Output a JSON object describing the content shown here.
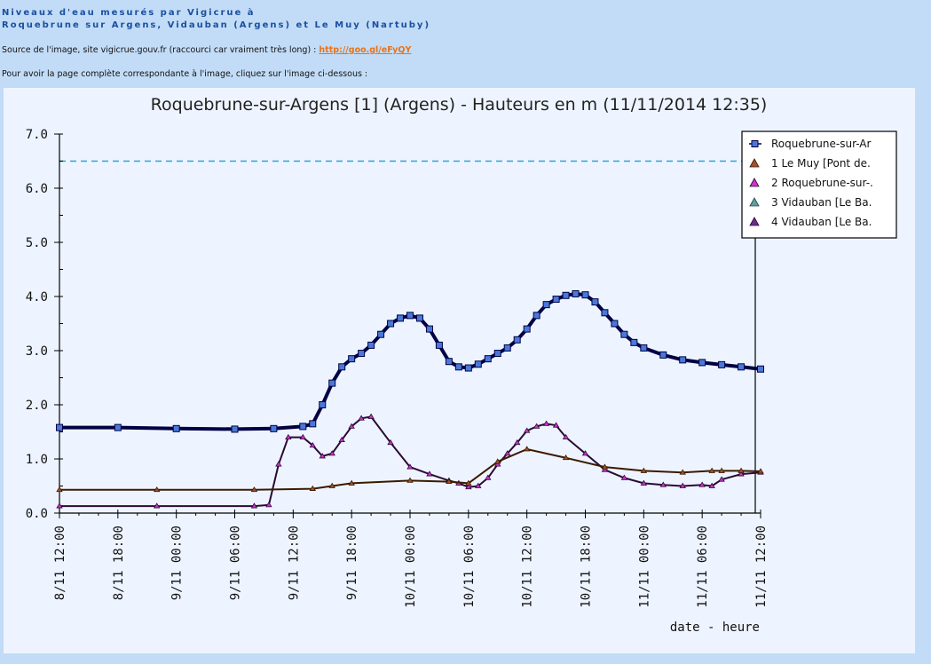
{
  "header": {
    "title_line1": "Niveaux d'eau mesurés par Vigicrue à",
    "title_line2": "Roquebrune sur Argens, Vidauban (Argens) et Le Muy (Nartuby)"
  },
  "source": {
    "prefix": "Source de l'image, site vigicrue.gouv.fr (raccourci car vraiment très long) : ",
    "link_text": "http://goo.gl/eFyQY"
  },
  "click_note": "Pour avoir la page complète correspondante à l'image, cliquez sur l'image ci-dessous :",
  "chart_data": {
    "type": "line",
    "title": "Roquebrune-sur-Argens [1] (Argens) - Hauteurs en m (11/11/2014 12:35)",
    "xlabel": "date - heure",
    "ylabel": "",
    "ylim": [
      0,
      7
    ],
    "y_ticks": [
      "0.0",
      "1.0",
      "2.0",
      "3.0",
      "4.0",
      "5.0",
      "6.0",
      "7.0"
    ],
    "x_range_hours": [
      0,
      72
    ],
    "x_tick_hours": [
      0,
      6,
      12,
      18,
      24,
      30,
      36,
      42,
      48,
      54,
      60,
      66,
      72
    ],
    "x_tick_labels": [
      "8/11 12:00",
      "8/11 18:00",
      "9/11 00:00",
      "9/11 06:00",
      "9/11 12:00",
      "9/11 18:00",
      "10/11 00:00",
      "10/11 06:00",
      "10/11 12:00",
      "10/11 18:00",
      "11/11 00:00",
      "11/11 06:00",
      "11/11 12:00"
    ],
    "threshold": {
      "value": 6.5,
      "color": "#2aa3d8"
    },
    "grid": false,
    "legend_position": "top-right",
    "series": [
      {
        "name": "Roquebrune-sur-Ar",
        "color": "#000044",
        "marker": "square",
        "marker_color": "#4a78d8",
        "x": [
          0,
          6,
          12,
          18,
          22,
          25,
          26,
          27,
          28,
          29,
          30,
          31,
          32,
          33,
          34,
          35,
          36,
          37,
          38,
          39,
          40,
          41,
          42,
          43,
          44,
          45,
          46,
          47,
          48,
          49,
          50,
          51,
          52,
          53,
          54,
          55,
          56,
          57,
          58,
          59,
          60,
          62,
          64,
          66,
          68,
          70,
          72
        ],
        "y": [
          1.58,
          1.58,
          1.56,
          1.55,
          1.56,
          1.6,
          1.65,
          2.0,
          2.4,
          2.7,
          2.85,
          2.95,
          3.1,
          3.3,
          3.5,
          3.6,
          3.65,
          3.6,
          3.4,
          3.1,
          2.8,
          2.7,
          2.68,
          2.75,
          2.85,
          2.95,
          3.05,
          3.2,
          3.4,
          3.65,
          3.85,
          3.95,
          4.02,
          4.05,
          4.03,
          3.9,
          3.7,
          3.5,
          3.3,
          3.15,
          3.05,
          2.92,
          2.83,
          2.78,
          2.74,
          2.7,
          2.66
        ]
      },
      {
        "name": "1 Le Muy [Pont de.",
        "color": "#3a1a00",
        "marker": "triangle",
        "marker_color": "#a0522d",
        "x": [
          0,
          10,
          20,
          26,
          28,
          30,
          36,
          40,
          42,
          45,
          48,
          52,
          56,
          60,
          64,
          67,
          68,
          70,
          72
        ],
        "y": [
          0.43,
          0.43,
          0.43,
          0.45,
          0.5,
          0.55,
          0.6,
          0.58,
          0.55,
          0.95,
          1.18,
          1.02,
          0.85,
          0.78,
          0.75,
          0.78,
          0.78,
          0.78,
          0.77
        ]
      },
      {
        "name": "2 Roquebrune-sur-.",
        "color": "#2a0a33",
        "marker": "triangle",
        "marker_color": "#cc33cc",
        "x": [
          0,
          10,
          20,
          21.5,
          22.5,
          23.5,
          25,
          26,
          27,
          28,
          29,
          30,
          31,
          32,
          34,
          36,
          38,
          40,
          41,
          42,
          43,
          44,
          45,
          46,
          47,
          48,
          49,
          50,
          51,
          52,
          54,
          56,
          58,
          60,
          62,
          64,
          66,
          67,
          68,
          70,
          72
        ],
        "y": [
          0.13,
          0.13,
          0.13,
          0.15,
          0.9,
          1.4,
          1.4,
          1.25,
          1.05,
          1.1,
          1.35,
          1.6,
          1.75,
          1.78,
          1.3,
          0.85,
          0.72,
          0.6,
          0.55,
          0.48,
          0.5,
          0.65,
          0.9,
          1.1,
          1.3,
          1.52,
          1.6,
          1.65,
          1.62,
          1.4,
          1.1,
          0.8,
          0.65,
          0.55,
          0.52,
          0.5,
          0.52,
          0.5,
          0.62,
          0.72,
          0.75
        ]
      },
      {
        "name": "3 Vidauban [Le Ba.",
        "color": "#224444",
        "marker": "triangle",
        "marker_color": "#5f9ea0",
        "x": [],
        "y": []
      },
      {
        "name": "4 Vidauban [Le Ba.",
        "color": "#2a0a33",
        "marker": "triangle",
        "marker_color": "#6b2d8f",
        "x": [],
        "y": []
      }
    ]
  }
}
